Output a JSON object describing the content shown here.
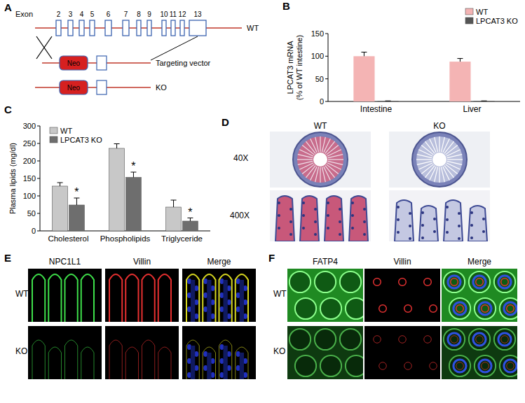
{
  "figure": {
    "panel_labels": [
      "A",
      "B",
      "C",
      "D",
      "E",
      "F"
    ],
    "A": {
      "exon_label": "Exon",
      "exon_numbers": [
        "2",
        "3",
        "4",
        "5",
        "6",
        "7",
        "8",
        "9",
        "10",
        "11",
        "12",
        "13"
      ],
      "alleles": [
        "WT",
        "Targeting vector",
        "KO"
      ],
      "cassette": "Neo"
    },
    "D": {
      "columns": [
        "WT",
        "KO"
      ],
      "rows": [
        "40X",
        "400X"
      ]
    },
    "E": {
      "columns": [
        "NPC1L1",
        "Villin",
        "Merge"
      ],
      "rows": [
        "WT",
        "KO"
      ]
    },
    "F": {
      "columns": [
        "FATP4",
        "Villin",
        "Merge"
      ],
      "rows": [
        "WT",
        "KO"
      ]
    }
  },
  "chart_data": [
    {
      "type": "bar",
      "categories": [
        "Intestine",
        "Liver"
      ],
      "y_label": [
        "LPCAT3 mRNA",
        "(% of WT intestine)"
      ],
      "series": [
        {
          "name": "WT",
          "color": "#f4b4b4",
          "values": [
            100,
            88
          ],
          "errors": [
            9,
            7
          ]
        },
        {
          "name": "LPCAT3 KO",
          "color": "#555555",
          "values": [
            1,
            1
          ],
          "errors": [
            0.3,
            0.3
          ]
        }
      ],
      "ylim": [
        0,
        150
      ],
      "yticks": [
        0,
        50,
        100,
        150
      ],
      "legend": "top-right"
    },
    {
      "type": "bar",
      "categories": [
        "Cholesterol",
        "Phospholipids",
        "Triglyceride"
      ],
      "y_label": [
        "Plasma lipids (mg/dl)"
      ],
      "series": [
        {
          "name": "WT",
          "color": "#c8c8c8",
          "values": [
            128,
            236,
            68
          ],
          "errors": [
            10,
            13,
            20
          ]
        },
        {
          "name": "LPCAT3 KO",
          "color": "#6e6e6e",
          "values": [
            74,
            153,
            28
          ],
          "errors": [
            20,
            15,
            9
          ],
          "annotations": [
            "*",
            "*",
            "*"
          ]
        }
      ],
      "ylim": [
        0,
        300
      ],
      "yticks": [
        0,
        50,
        100,
        150,
        200,
        250,
        300
      ],
      "legend": "top-left"
    }
  ]
}
